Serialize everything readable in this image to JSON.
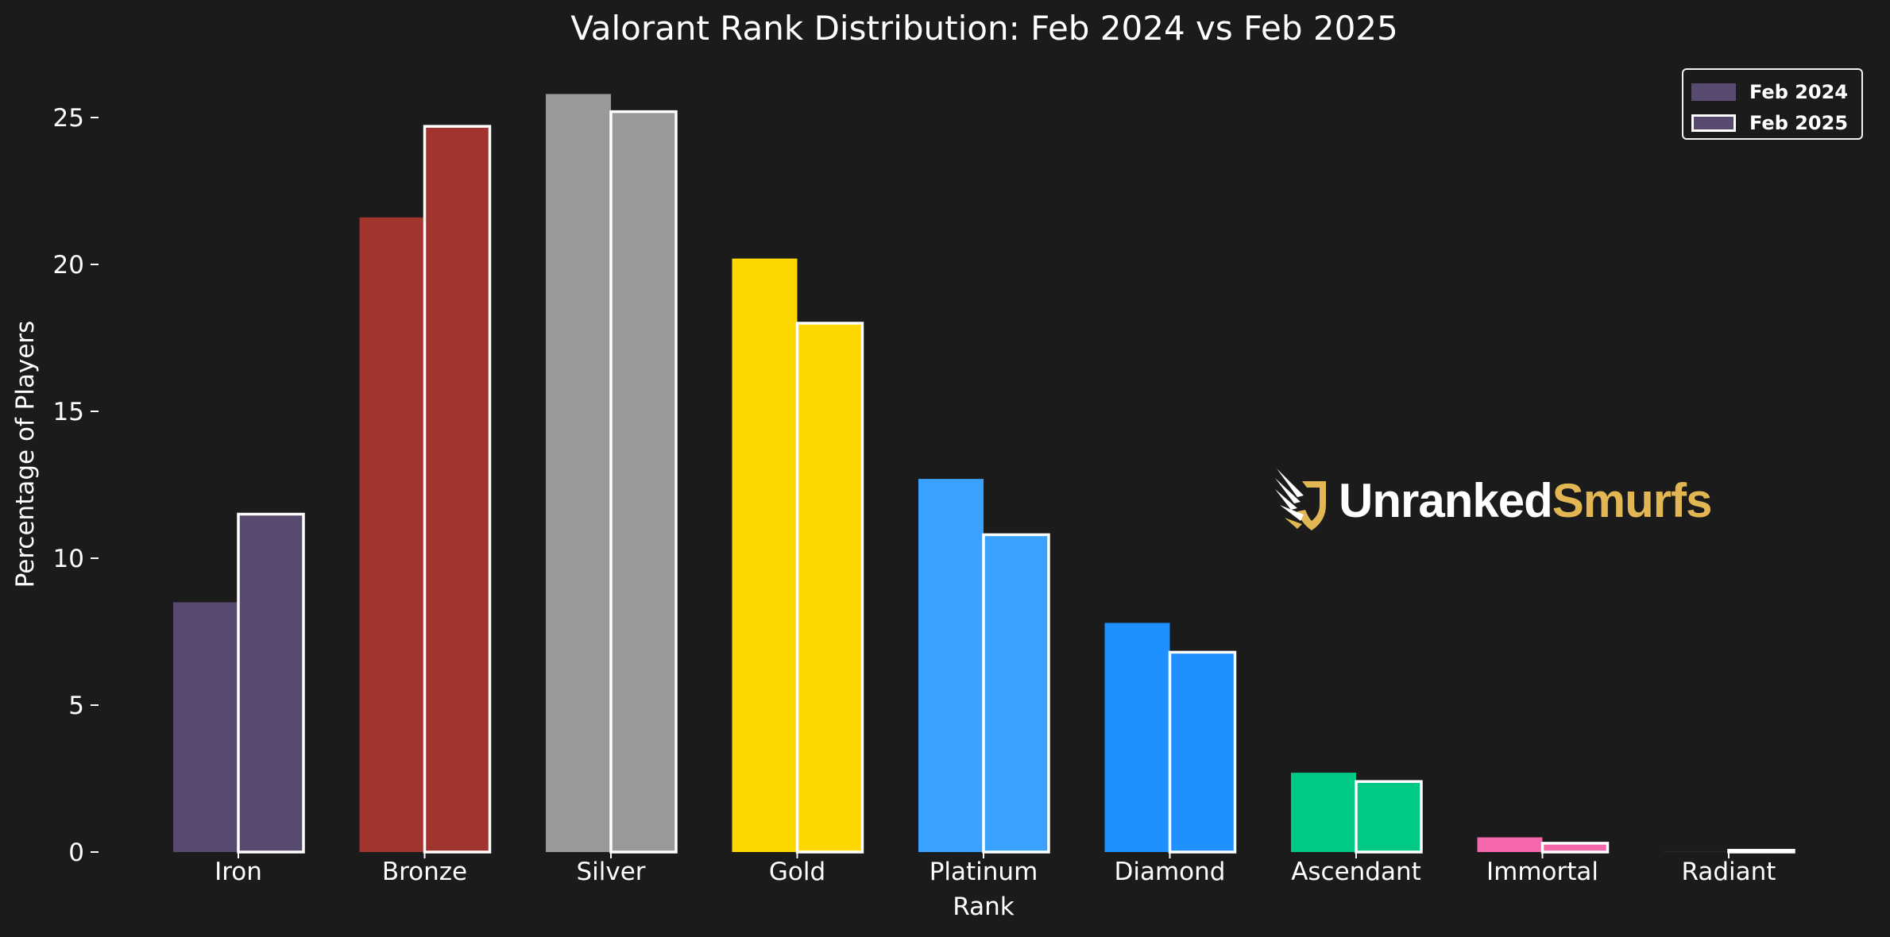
{
  "chart_data": {
    "type": "bar",
    "title": "Valorant Rank Distribution: Feb 2024 vs Feb 2025",
    "xlabel": "Rank",
    "ylabel": "Percentage of Players",
    "categories": [
      "Iron",
      "Bronze",
      "Silver",
      "Gold",
      "Platinum",
      "Diamond",
      "Ascendant",
      "Immortal",
      "Radiant"
    ],
    "series": [
      {
        "name": "Feb 2024",
        "values": [
          8.5,
          21.6,
          25.8,
          20.2,
          12.7,
          7.8,
          2.7,
          0.5,
          0.03
        ]
      },
      {
        "name": "Feb 2025",
        "values": [
          11.5,
          24.7,
          25.2,
          18.0,
          10.8,
          6.8,
          2.4,
          0.3,
          0.06
        ]
      }
    ],
    "category_colors": [
      "#584a6e",
      "#a1342d",
      "#999999",
      "#ffd700",
      "#39a2ff",
      "#1e90ff",
      "#00c885",
      "#f666ab",
      "#2a2a2a"
    ],
    "feb2025_outline_color": "#ffffff",
    "yticks": [
      0,
      5,
      10,
      15,
      20,
      25
    ],
    "ylim": [
      0,
      26.3
    ],
    "grid": false,
    "legend_position": "top-right"
  },
  "colors": {
    "background": "#1b1b1b",
    "text": "#ffffff",
    "legend_swatch": "#584a6e",
    "logo_gold": "#e1b653"
  },
  "logo": {
    "text_white": "Unranked",
    "text_gold": "Smurfs",
    "icon": "winged-shield-icon"
  }
}
